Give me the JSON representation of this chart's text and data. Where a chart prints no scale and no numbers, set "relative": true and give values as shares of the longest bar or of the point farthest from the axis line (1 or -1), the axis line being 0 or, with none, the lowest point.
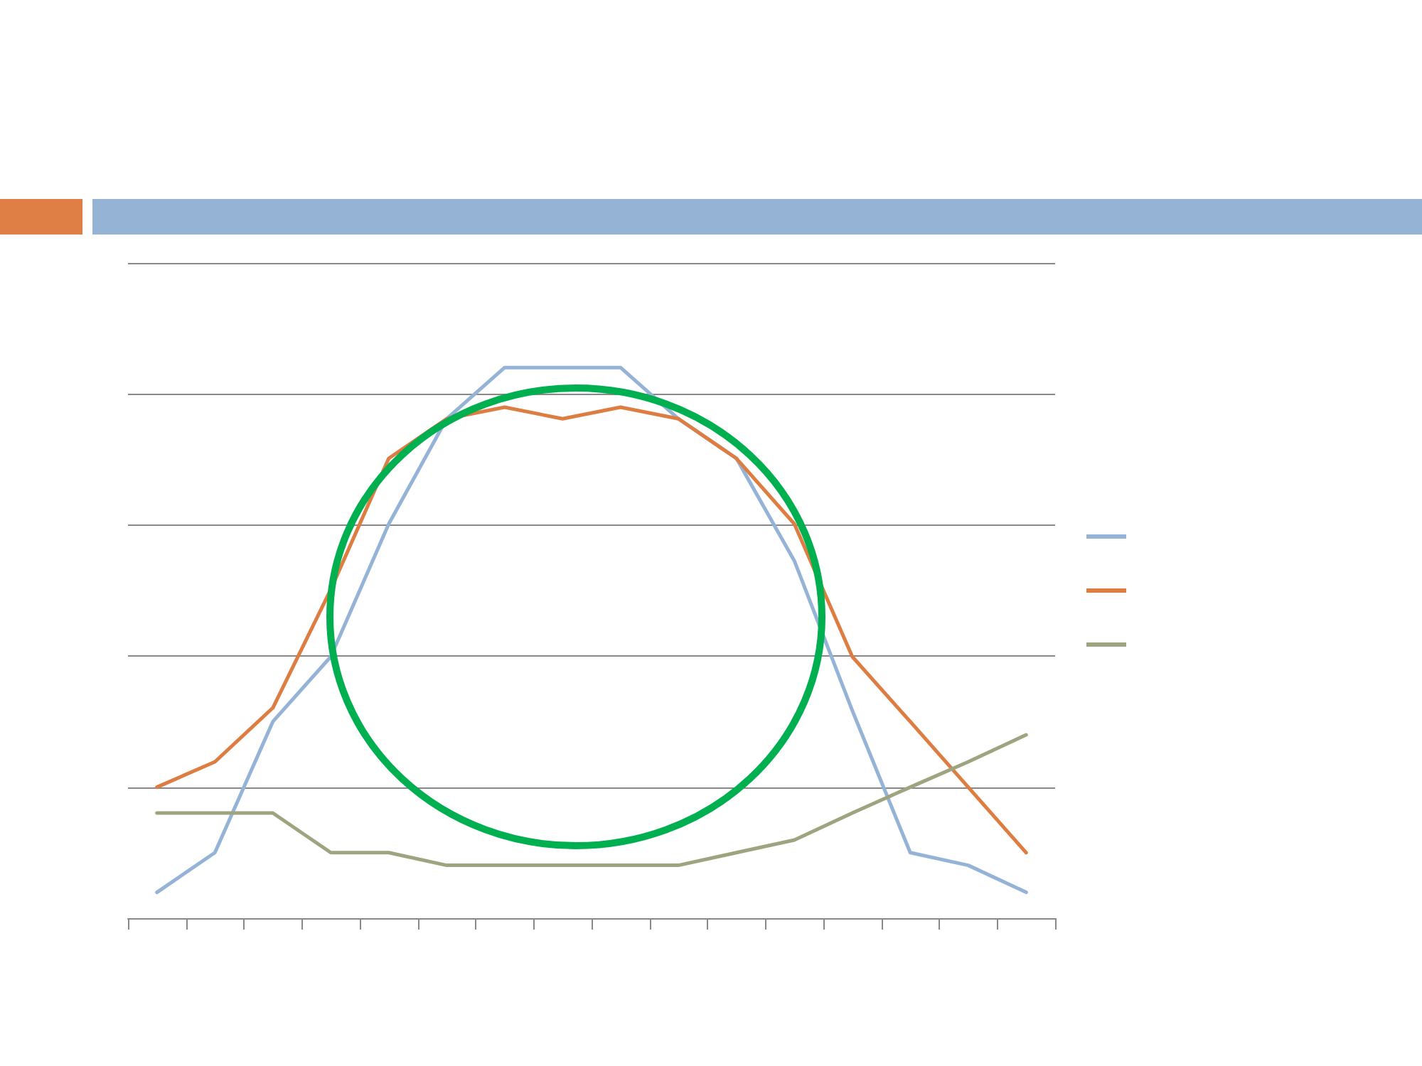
{
  "chart_data": {
    "type": "line",
    "relative": true,
    "grid": "y",
    "marker": "none",
    "line_style": "solid",
    "categories": [
      null,
      null,
      null,
      null,
      null,
      null,
      null,
      null,
      null,
      null,
      null,
      null,
      null,
      null,
      null,
      null
    ],
    "series": [
      {
        "color": "#95b3d7",
        "values": [
          0.047,
          0.119,
          0.357,
          0.475,
          0.716,
          0.907,
          1,
          1,
          1,
          0.907,
          0.835,
          0.649,
          0.377,
          0.119,
          0.096,
          0.047
        ]
      },
      {
        "color": "#dd7d42",
        "values": [
          0.238,
          0.284,
          0.382,
          0.597,
          0.835,
          0.907,
          0.928,
          0.907,
          0.928,
          0.907,
          0.835,
          0.716,
          0.475,
          0.357,
          0.238,
          0.119
        ]
      },
      {
        "color": "#9ea480",
        "values": [
          0.191,
          0.191,
          0.191,
          0.119,
          0.119,
          0.096,
          0.096,
          0.096,
          0.096,
          0.096,
          0.119,
          0.142,
          0.191,
          0.238,
          0.284,
          0.333
        ]
      }
    ]
  }
}
